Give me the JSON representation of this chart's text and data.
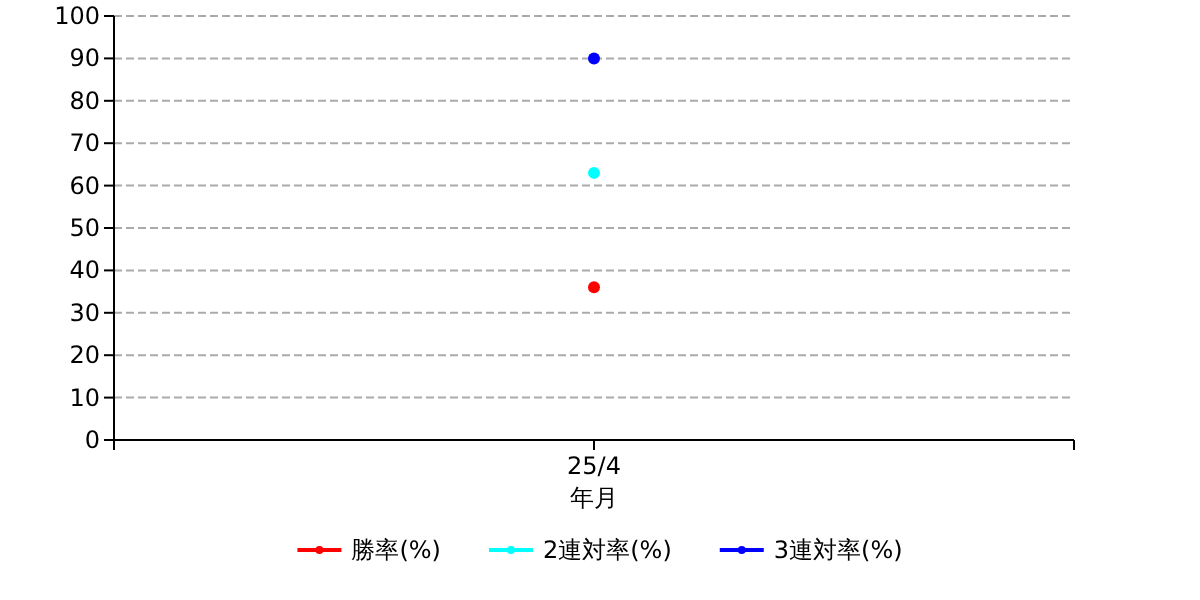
{
  "chart_data": {
    "type": "line",
    "xlabel": "年月",
    "categories": [
      "25/4"
    ],
    "series": [
      {
        "name": "勝率(%)",
        "color": "#ff0000",
        "values": [
          36
        ]
      },
      {
        "name": "2連対率(%)",
        "color": "#00ffff",
        "values": [
          63
        ]
      },
      {
        "name": "3連対率(%)",
        "color": "#0000ff",
        "values": [
          90
        ]
      }
    ],
    "ylim": [
      0,
      100
    ],
    "yticks": [
      0,
      10,
      20,
      30,
      40,
      50,
      60,
      70,
      80,
      90,
      100
    ],
    "grid": "y",
    "legend": "bottom",
    "marker": "circle",
    "line_style": "solid"
  }
}
